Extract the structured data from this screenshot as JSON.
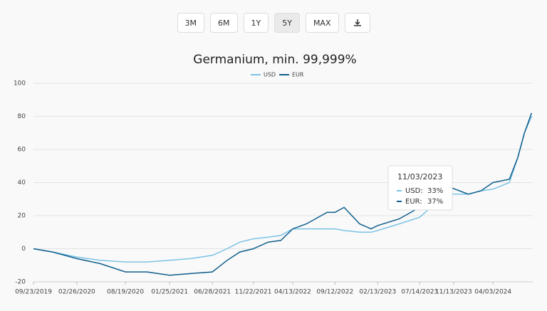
{
  "controls": [
    "3M",
    "6M",
    "1Y",
    "5Y",
    "MAX"
  ],
  "chart_data": {
    "type": "line",
    "title": "Germanium, min. 99,999%",
    "x": [
      "09/23/2019",
      "12/01/2019",
      "02/26/2020",
      "05/20/2020",
      "08/19/2020",
      "11/05/2020",
      "01/25/2021",
      "04/10/2021",
      "06/28/2021",
      "08/20/2021",
      "10/05/2021",
      "11/22/2021",
      "01/15/2022",
      "03/01/2022",
      "04/13/2022",
      "06/01/2022",
      "08/15/2022",
      "09/12/2022",
      "10/15/2022",
      "12/10/2022",
      "01/20/2023",
      "02/13/2023",
      "05/01/2023",
      "07/14/2023",
      "09/25/2023",
      "11/03/2023",
      "01/05/2024",
      "02/20/2024",
      "04/03/2024",
      "06/01/2024",
      "07/01/2024",
      "07/25/2024",
      "08/20/2024"
    ],
    "series": [
      {
        "name": "USD",
        "color": "#7cc3e6",
        "values": [
          0,
          -2,
          -5,
          -7,
          -8,
          -8,
          -7,
          -6,
          -4,
          0,
          4,
          6,
          7,
          8,
          12,
          12,
          12,
          12,
          11,
          10,
          10,
          11,
          15,
          19,
          30,
          33,
          33,
          35,
          36,
          40,
          55,
          70,
          80
        ]
      },
      {
        "name": "EUR",
        "color": "#0f5e8c",
        "values": [
          0,
          -2,
          -6,
          -9,
          -14,
          -14,
          -16,
          -15,
          -14,
          -7,
          -2,
          0,
          4,
          5,
          12,
          15,
          22,
          22,
          25,
          15,
          12,
          14,
          18,
          25,
          31,
          37,
          33,
          35,
          40,
          42,
          55,
          70,
          82
        ]
      }
    ],
    "xlim": [
      "09/23/2019",
      "08/24/2024"
    ],
    "xticks": [
      "09/23/2019",
      "02/26/2020",
      "08/19/2020",
      "01/25/2021",
      "06/28/2021",
      "11/22/2021",
      "04/13/2022",
      "09/12/2022",
      "02/13/2023",
      "07/14/2023",
      "11/13/2023",
      "04/03/2024"
    ],
    "ylim": [
      -20,
      100
    ],
    "yticks": [
      -20,
      0,
      20,
      40,
      60,
      80,
      100
    ],
    "grid": true,
    "tooltip": {
      "title": "11/03/2023",
      "rows": [
        {
          "name": "USD:",
          "value": "33%"
        },
        {
          "name": "EUR:",
          "value": "37%"
        }
      ]
    }
  }
}
